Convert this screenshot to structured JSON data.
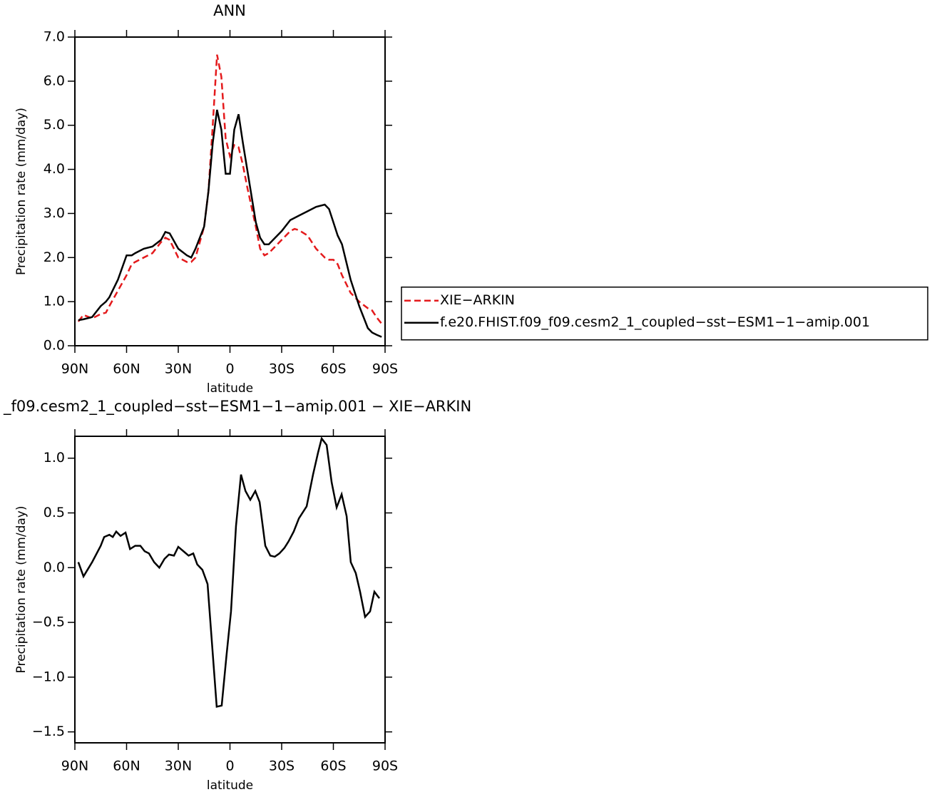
{
  "chart_data": [
    {
      "type": "line",
      "title": "ANN",
      "xlabel": "latitude",
      "ylabel": "Precipitation rate (mm/day)",
      "xlim": [
        90,
        -90
      ],
      "xticks": [
        {
          "value": 90,
          "label": "90N"
        },
        {
          "value": 60,
          "label": "60N"
        },
        {
          "value": 30,
          "label": "30N"
        },
        0,
        {
          "value": -30,
          "label": "30S"
        },
        {
          "value": -60,
          "label": "60S"
        },
        {
          "value": -90,
          "label": "90S"
        }
      ],
      "ylim": [
        0,
        7
      ],
      "yticks": [
        {
          "value": 0,
          "label": "0.0"
        },
        {
          "value": 1,
          "label": "1.0"
        },
        {
          "value": 2,
          "label": "2.0"
        },
        {
          "value": 3,
          "label": "3.0"
        },
        {
          "value": 4,
          "label": "4.0"
        },
        {
          "value": 5,
          "label": "5.0"
        },
        {
          "value": 6,
          "label": "6.0"
        },
        {
          "value": 7,
          "label": "7.0"
        }
      ],
      "legend": "right",
      "x": [
        88,
        85,
        80,
        75,
        72,
        70,
        65,
        60,
        57,
        55,
        50,
        45,
        40,
        37.5,
        35,
        30,
        25,
        22.5,
        20,
        15,
        12.5,
        10,
        7.5,
        5,
        2.5,
        0,
        -2.5,
        -5,
        -7.5,
        -10,
        -15,
        -17.5,
        -20,
        -22.5,
        -25,
        -30,
        -35,
        -37.5,
        -40,
        -45,
        -50,
        -55,
        -57.5,
        -60,
        -62.5,
        -65,
        -70,
        -75,
        -80,
        -82.5,
        -85,
        -88
      ],
      "series": [
        {
          "name": "XIE−ARKIN",
          "color": "#e41a1c",
          "linestyle": "dashed",
          "values": [
            0.55,
            0.7,
            0.62,
            0.72,
            0.75,
            0.9,
            1.25,
            1.6,
            1.85,
            1.9,
            2.0,
            2.1,
            2.35,
            2.45,
            2.4,
            2.0,
            1.9,
            1.9,
            2.0,
            2.7,
            3.5,
            5.0,
            6.6,
            6.1,
            4.7,
            4.3,
            4.55,
            4.5,
            4.1,
            3.6,
            2.7,
            2.2,
            2.05,
            2.1,
            2.2,
            2.4,
            2.6,
            2.65,
            2.62,
            2.5,
            2.2,
            2.0,
            1.95,
            1.95,
            1.85,
            1.6,
            1.2,
            1.0,
            0.85,
            0.8,
            0.65,
            0.5
          ]
        },
        {
          "name": "f.e20.FHIST.f09_f09.cesm2_1_coupled−sst−ESM1−1−amip.001",
          "color": "#000000",
          "linestyle": "solid",
          "values": [
            0.58,
            0.6,
            0.65,
            0.9,
            1.0,
            1.1,
            1.5,
            2.05,
            2.05,
            2.1,
            2.2,
            2.25,
            2.4,
            2.58,
            2.55,
            2.2,
            2.05,
            2.0,
            2.2,
            2.7,
            3.5,
            4.6,
            5.35,
            4.9,
            3.9,
            3.9,
            4.9,
            5.25,
            4.6,
            4.0,
            2.8,
            2.45,
            2.3,
            2.3,
            2.4,
            2.6,
            2.85,
            2.9,
            2.95,
            3.05,
            3.15,
            3.2,
            3.1,
            2.8,
            2.5,
            2.3,
            1.5,
            0.9,
            0.4,
            0.3,
            0.25,
            0.2
          ]
        }
      ]
    },
    {
      "type": "line",
      "title": "_f09.cesm2_1_coupled−sst−ESM1−1−amip.001 − XIE−ARKIN",
      "xlabel": "latitude",
      "ylabel": "Precipitation rate (mm/day)",
      "xlim": [
        90,
        -90
      ],
      "xticks": [
        {
          "value": 90,
          "label": "90N"
        },
        {
          "value": 60,
          "label": "60N"
        },
        {
          "value": 30,
          "label": "30N"
        },
        0,
        {
          "value": -30,
          "label": "30S"
        },
        {
          "value": -60,
          "label": "60S"
        },
        {
          "value": -90,
          "label": "90S"
        }
      ],
      "ylim": [
        -1.6,
        1.2
      ],
      "yticks": [
        {
          "value": -1.5,
          "label": "−1.5"
        },
        {
          "value": -1,
          "label": "−1.0"
        },
        {
          "value": -0.5,
          "label": "−0.5"
        },
        {
          "value": 0,
          "label": "0.0"
        },
        {
          "value": 0.5,
          "label": "0.5"
        },
        {
          "value": 1,
          "label": "1.0"
        }
      ],
      "x": [
        88,
        85,
        80,
        75,
        73,
        70,
        68,
        66,
        63.5,
        60.6,
        58,
        55,
        52,
        49.5,
        47,
        44,
        41,
        38,
        35.4,
        32.5,
        30,
        27,
        24,
        21.3,
        19,
        16,
        13,
        7.7,
        4.8,
        2,
        -0.6,
        -3.5,
        -6.4,
        -9,
        -11.8,
        -14.7,
        -17.2,
        -20.5,
        -23.4,
        -26,
        -28.7,
        -31.6,
        -34,
        -37,
        -40,
        -44.5,
        -48.2,
        -51.1,
        -53.2,
        -56.1,
        -59,
        -61.9,
        -64.8,
        -67.7,
        -70.1,
        -73,
        -75.5,
        -78.4,
        -81.3,
        -83.8,
        -86.7
      ],
      "series": [
        {
          "color": "#000000",
          "linestyle": "solid",
          "values": [
            0.05,
            -0.08,
            0.05,
            0.2,
            0.28,
            0.3,
            0.28,
            0.33,
            0.29,
            0.32,
            0.17,
            0.2,
            0.2,
            0.15,
            0.13,
            0.05,
            0.0,
            0.08,
            0.12,
            0.11,
            0.19,
            0.15,
            0.11,
            0.13,
            0.03,
            -0.02,
            -0.15,
            -1.27,
            -1.26,
            -0.8,
            -0.4,
            0.38,
            0.85,
            0.7,
            0.62,
            0.7,
            0.6,
            0.2,
            0.11,
            0.1,
            0.13,
            0.18,
            0.24,
            0.33,
            0.45,
            0.56,
            0.85,
            1.05,
            1.18,
            1.12,
            0.78,
            0.55,
            0.67,
            0.47,
            0.05,
            -0.05,
            -0.22,
            -0.45,
            -0.4,
            -0.22,
            -0.28
          ]
        }
      ]
    }
  ]
}
